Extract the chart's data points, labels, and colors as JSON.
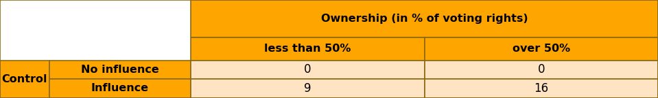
{
  "orange": "#FFA500",
  "light_orange": "#FFE4C4",
  "white": "#FFFFFF",
  "border_color": "#8B6914",
  "header1_text": "Ownership (in % of voting rights)",
  "header2_col1": "less than 50%",
  "header2_col2": "over 50%",
  "row_label_main": "Control",
  "row1_label": "No influence",
  "row2_label": "Influence",
  "data": [
    [
      "0",
      "0"
    ],
    [
      "9",
      "16"
    ]
  ],
  "fig_width": 9.59,
  "fig_height": 1.44,
  "dpi": 100,
  "c0": 0.0,
  "c1": 0.075,
  "c2": 0.29,
  "c3": 0.645,
  "c4": 1.0,
  "r_top": 1.0,
  "r1": 0.615,
  "r2": 0.385,
  "r3": 0.195,
  "r_bot": 0.0,
  "lw": 1.2
}
